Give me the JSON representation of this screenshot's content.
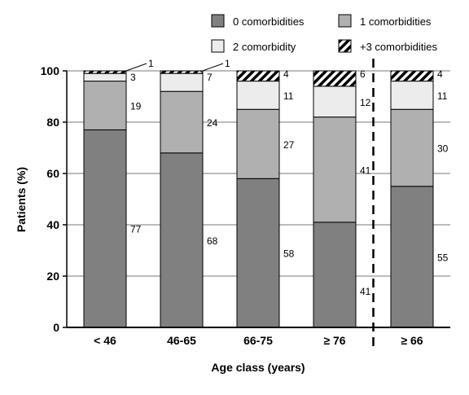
{
  "chart_data": {
    "type": "bar",
    "stacked": true,
    "xlabel": "Age class (years)",
    "ylabel": "Patients (%)",
    "ylim": [
      0,
      100
    ],
    "yticks": [
      0,
      20,
      40,
      60,
      80,
      100
    ],
    "grid": "horizontal",
    "legend_position": "top-right",
    "categories": [
      "< 46",
      "46-65",
      "66-75",
      "≥ 76",
      "≥ 66"
    ],
    "separator_after_category": "≥ 76",
    "series": [
      {
        "name": "0 comorbidities",
        "color": "#808080",
        "pattern": "solid",
        "values": [
          77,
          68,
          58,
          41,
          55
        ]
      },
      {
        "name": "1 comorbidities",
        "color": "#b0b0b0",
        "pattern": "solid",
        "values": [
          19,
          24,
          27,
          41,
          30
        ]
      },
      {
        "name": "2 comorbidity",
        "color": "#ececec",
        "pattern": "solid",
        "values": [
          3,
          7,
          11,
          12,
          11
        ]
      },
      {
        "name": "+3 comorbidities",
        "color": "#ffffff",
        "pattern": "diagonal-hatch",
        "values": [
          1,
          1,
          4,
          6,
          4
        ]
      }
    ]
  }
}
